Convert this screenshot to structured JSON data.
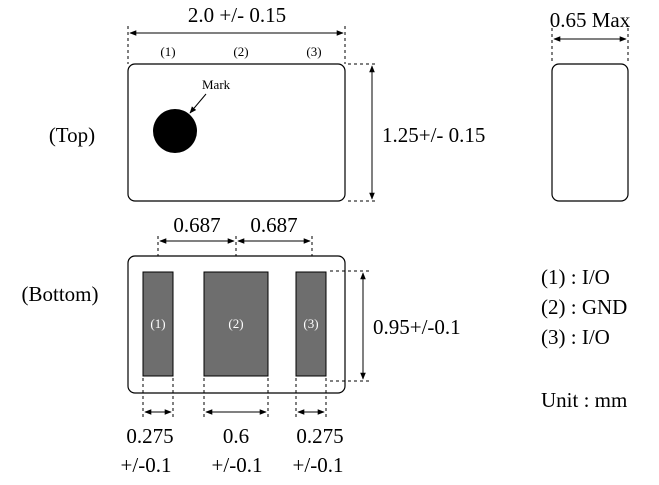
{
  "dimensions": {
    "length": "2.0 +/- 0.15",
    "width": "1.25+/- 0.15",
    "height": "0.65 Max",
    "pitch_left": "0.687",
    "pitch_right": "0.687",
    "pad_height": "0.95+/-0.1",
    "pad_width_outer_left": [
      "0.275",
      "+/-0.1"
    ],
    "pad_width_center": [
      "0.6",
      "+/-0.1"
    ],
    "pad_width_outer_right": [
      "0.275",
      "+/-0.1"
    ]
  },
  "views": {
    "top": "(Top)",
    "bottom": "(Bottom)"
  },
  "top_pin_labels": [
    "(1)",
    "(2)",
    "(3)"
  ],
  "bottom_pad_labels": [
    "(1)",
    "(2)",
    "(3)"
  ],
  "mark_label": "Mark",
  "pin_legend": [
    "(1) : I/O",
    "(2) : GND",
    "(3) : I/O"
  ],
  "unit": "Unit : mm",
  "colors": {
    "pad_fill": "#6e6e6e",
    "mark_fill": "#000000",
    "outline": "#000000"
  }
}
